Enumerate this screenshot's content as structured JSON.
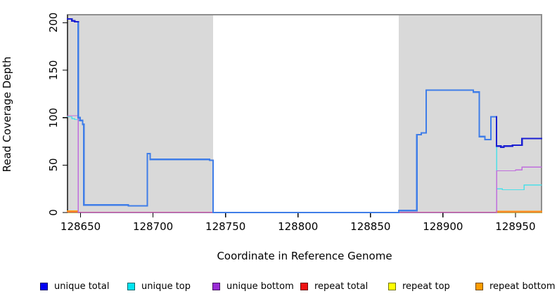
{
  "chart_data": {
    "type": "line",
    "subtype": "step-coverage",
    "title": "",
    "xlabel": "Coordinate in Reference Genome",
    "ylabel": "Read Coverage Depth",
    "xlim": [
      128641,
      128968
    ],
    "ylim": [
      0,
      208.5
    ],
    "grid": false,
    "x_ticks": [
      128650,
      128700,
      128750,
      128800,
      128850,
      128900,
      128950
    ],
    "x_tick_labels": [
      "128650",
      "128700",
      "128750",
      "128800",
      "128850",
      "128900",
      "128950"
    ],
    "y_ticks": [
      0,
      50,
      100,
      150,
      200
    ],
    "y_tick_labels": [
      "0",
      "50",
      "100",
      "150",
      "200"
    ],
    "frame_color": "#8f8f8f",
    "axis_color": "#000000",
    "background_regions": [
      {
        "x0": 128641,
        "x1": 128741.5,
        "color": "#d9d9d9"
      },
      {
        "x0": 128869.5,
        "x1": 128968,
        "color": "#d9d9d9"
      }
    ],
    "series": [
      {
        "name": "repeat top",
        "color": "#f2f20c",
        "width": 1.2,
        "points": [
          [
            128641,
            0
          ],
          [
            128968,
            0
          ]
        ]
      },
      {
        "name": "repeat total",
        "color": "#dc4f6a",
        "width": 1.3,
        "points": [
          [
            128641,
            0.4
          ],
          [
            128968,
            0.4
          ]
        ]
      },
      {
        "name": "repeat bottom",
        "color": "#ff9713",
        "width": 1.8,
        "points": [
          [
            128641,
            1.5
          ],
          [
            128648.4,
            1.5
          ],
          [
            128649,
            null
          ],
          [
            128937,
            1
          ],
          [
            128968,
            1
          ]
        ]
      },
      {
        "name": "unique top",
        "color": "#4ddfe8",
        "width": 1.3,
        "points": [
          [
            128641,
            101
          ],
          [
            128644,
            99
          ],
          [
            128646,
            98
          ],
          [
            128648.4,
            97
          ],
          [
            128651.5,
            93
          ],
          [
            128652.3,
            8
          ],
          [
            128683,
            7
          ],
          [
            128696,
            62
          ],
          [
            128698,
            56
          ],
          [
            128739,
            55
          ],
          [
            128741.5,
            0
          ],
          [
            128869.5,
            2
          ],
          [
            128882,
            82
          ],
          [
            128885,
            84
          ],
          [
            128888.5,
            129
          ],
          [
            128921,
            127
          ],
          [
            128925,
            80
          ],
          [
            128929,
            77
          ],
          [
            128933,
            101
          ],
          [
            128937,
            25
          ],
          [
            128941,
            24
          ],
          [
            128956,
            29
          ],
          [
            128968,
            29
          ]
        ]
      },
      {
        "name": "unique bottom",
        "color": "#c06ddd",
        "width": 1.3,
        "points": [
          [
            128641,
            102
          ],
          [
            128648.4,
            0
          ],
          [
            128937,
            44
          ],
          [
            128950,
            45
          ],
          [
            128954.5,
            48
          ],
          [
            128968,
            48
          ]
        ]
      },
      {
        "name": "unique total",
        "color": "#1b1fd2",
        "width": 2.2,
        "blend": {
          "equals_series": "unique top",
          "equal_color": "#3f7de8",
          "tolerance": 3.5
        },
        "points": [
          [
            128641,
            204
          ],
          [
            128644,
            202
          ],
          [
            128646,
            201
          ],
          [
            128648.4,
            100
          ],
          [
            128649.6,
            97
          ],
          [
            128651.5,
            93
          ],
          [
            128652.3,
            8
          ],
          [
            128683,
            7
          ],
          [
            128696,
            62
          ],
          [
            128698,
            56
          ],
          [
            128739,
            55
          ],
          [
            128741.5,
            0
          ],
          [
            128869.5,
            2
          ],
          [
            128882,
            82
          ],
          [
            128885,
            84
          ],
          [
            128888.5,
            129
          ],
          [
            128921,
            127
          ],
          [
            128925,
            80
          ],
          [
            128929,
            77
          ],
          [
            128933,
            101
          ],
          [
            128937,
            70
          ],
          [
            128940,
            69
          ],
          [
            128942,
            70
          ],
          [
            128948,
            71
          ],
          [
            128954.5,
            78
          ],
          [
            128968,
            78
          ]
        ]
      }
    ]
  },
  "legend": {
    "items": [
      {
        "label": "unique total",
        "color": "#0000f2"
      },
      {
        "label": "unique top",
        "color": "#00e4f0"
      },
      {
        "label": "unique bottom",
        "color": "#992cd6"
      },
      {
        "label": "repeat total",
        "color": "#ee1111"
      },
      {
        "label": "repeat top",
        "color": "#ffff00"
      },
      {
        "label": "repeat bottom",
        "color": "#ff9d00"
      }
    ]
  },
  "colors": {
    "plot_background": "#ffffff",
    "shaded_region": "#d9d9d9",
    "frame": "#8f8f8f",
    "axis": "#000000"
  }
}
